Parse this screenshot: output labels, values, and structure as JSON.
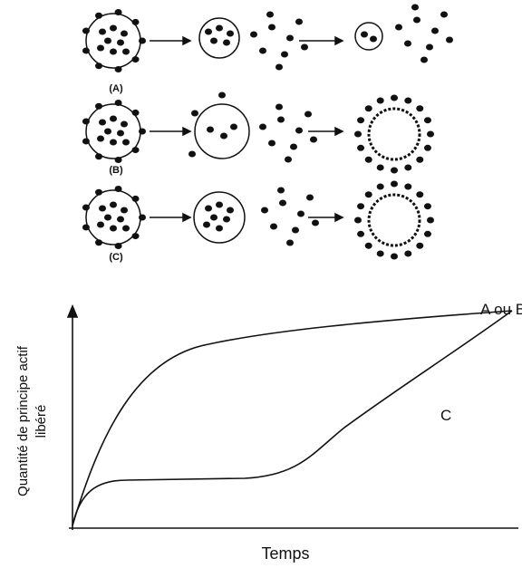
{
  "stages": {
    "labels": [
      "(A)",
      "(B)",
      "(C)"
    ]
  },
  "graph": {
    "y_label": [
      "Quantité de principe actif",
      "libéré"
    ],
    "x_label": "Temps",
    "curves": [
      {
        "label": "A ou B"
      },
      {
        "label": "C"
      }
    ]
  }
}
